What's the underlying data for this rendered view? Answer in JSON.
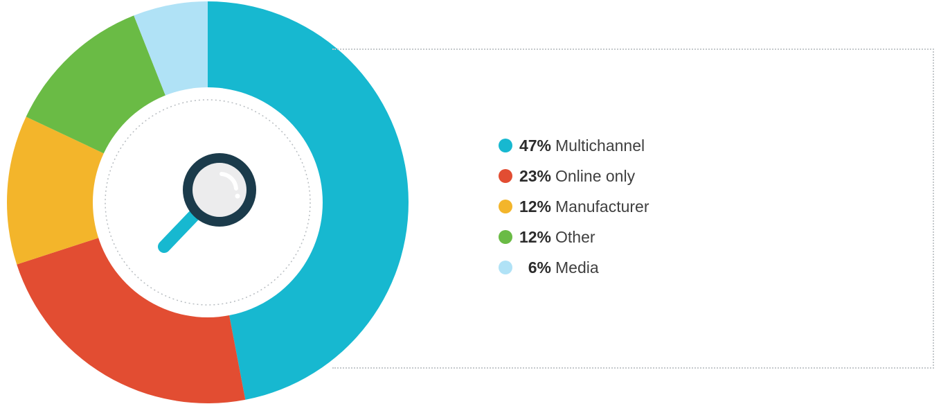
{
  "chart_data": {
    "type": "pie",
    "slices": [
      {
        "label": "Multichannel",
        "percent_label": "47%",
        "value": 47,
        "color": "#17b8d0"
      },
      {
        "label": "Online only",
        "percent_label": "23%",
        "value": 23,
        "color": "#e24d32"
      },
      {
        "label": "Manufacturer",
        "percent_label": "12%",
        "value": 12,
        "color": "#f3b52b"
      },
      {
        "label": "Other",
        "percent_label": "12%",
        "value": 12,
        "color": "#6abb45"
      },
      {
        "label": "Media",
        "percent_label": "6%",
        "value": 6,
        "color": "#b0e2f6"
      }
    ],
    "style": "donut",
    "legend_position": "right",
    "center_icon": "magnifying-glass-icon"
  }
}
